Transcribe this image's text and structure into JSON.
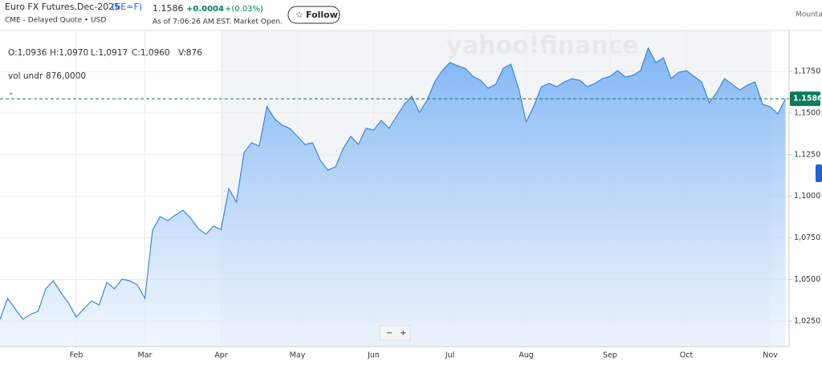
{
  "header": {
    "title": "Euro FX Futures,Dec-2025",
    "symbol": "(6E=F)",
    "source": "CME - Delayed Quote • USD",
    "price": "1.1586",
    "change": "+0.0004",
    "change_pct": "+(0.03%)",
    "timestamp": "As of 7:06:26 AM EST. Market Open.",
    "follow": "Follow",
    "timezone": "Mounta"
  },
  "legend": {
    "open": "O:1,0936",
    "high": "H:1,0970",
    "low": "L:1,0917",
    "close": "C:1,0960",
    "volume": "V:876",
    "study": "vol undr",
    "study_value": "876,0000"
  },
  "watermark": "yahoo!finance",
  "zoom": {
    "out": "−",
    "in": "+"
  },
  "chart_data": {
    "type": "area",
    "color": "#3b87e0",
    "grid": true,
    "last_price": 1.1586,
    "ylim": [
      1.0097,
      1.1996
    ],
    "yticks": [
      {
        "value": 1.025,
        "label": "1,0250"
      },
      {
        "value": 1.05,
        "label": "1,0500"
      },
      {
        "value": 1.075,
        "label": "1,0750"
      },
      {
        "value": 1.1,
        "label": "1,1000"
      },
      {
        "value": 1.125,
        "label": "1,1250"
      },
      {
        "value": 1.15,
        "label": "1,1500"
      },
      {
        "value": 1.175,
        "label": "1,1750"
      }
    ],
    "categories": [
      null,
      null,
      null,
      null,
      null,
      null,
      null,
      null,
      null,
      null,
      "Feb",
      null,
      null,
      null,
      null,
      null,
      null,
      null,
      null,
      "Mar",
      null,
      null,
      null,
      null,
      null,
      null,
      null,
      null,
      null,
      "Apr",
      null,
      null,
      null,
      null,
      null,
      null,
      null,
      null,
      null,
      "May",
      null,
      null,
      null,
      null,
      null,
      null,
      null,
      null,
      null,
      "Jun",
      null,
      null,
      null,
      null,
      null,
      null,
      null,
      null,
      null,
      "Jul",
      null,
      null,
      null,
      null,
      null,
      null,
      null,
      null,
      null,
      "Aug",
      null,
      null,
      null,
      null,
      null,
      null,
      null,
      null,
      null,
      null,
      "Sep",
      null,
      null,
      null,
      null,
      null,
      null,
      null,
      null,
      null,
      "Oct",
      null,
      null,
      null,
      null,
      null,
      null,
      null,
      null,
      null,
      null,
      "Nov",
      null,
      null
    ],
    "values": [
      1.0261,
      1.0386,
      1.0323,
      1.0261,
      1.029,
      1.0309,
      1.0444,
      1.0492,
      1.042,
      1.0357,
      1.0275,
      1.0323,
      1.0371,
      1.0347,
      1.0482,
      1.0444,
      1.0502,
      1.0492,
      1.0468,
      1.0386,
      1.0796,
      1.0878,
      1.0853,
      1.0887,
      1.0916,
      1.0868,
      1.0805,
      1.0772,
      1.082,
      1.08,
      1.1046,
      1.0964,
      1.1263,
      1.1321,
      1.1302,
      1.1538,
      1.1466,
      1.1427,
      1.1408,
      1.136,
      1.1311,
      1.1321,
      1.1215,
      1.1157,
      1.1176,
      1.1287,
      1.136,
      1.1311,
      1.1408,
      1.1398,
      1.1456,
      1.1408,
      1.148,
      1.1552,
      1.1601,
      1.1504,
      1.1576,
      1.1687,
      1.1755,
      1.1803,
      1.1784,
      1.1769,
      1.1721,
      1.1697,
      1.1649,
      1.1673,
      1.1769,
      1.1793,
      1.1649,
      1.1446,
      1.1543,
      1.1658,
      1.1678,
      1.1658,
      1.1687,
      1.1707,
      1.1697,
      1.1658,
      1.1678,
      1.1707,
      1.1721,
      1.1755,
      1.1716,
      1.1726,
      1.1755,
      1.189,
      1.1803,
      1.1832,
      1.1707,
      1.1745,
      1.1755,
      1.1721,
      1.1687,
      1.1562,
      1.1625,
      1.1707,
      1.1673,
      1.1639,
      1.1668,
      1.1687,
      1.1552,
      1.1538,
      1.1495,
      1.1586
    ]
  }
}
